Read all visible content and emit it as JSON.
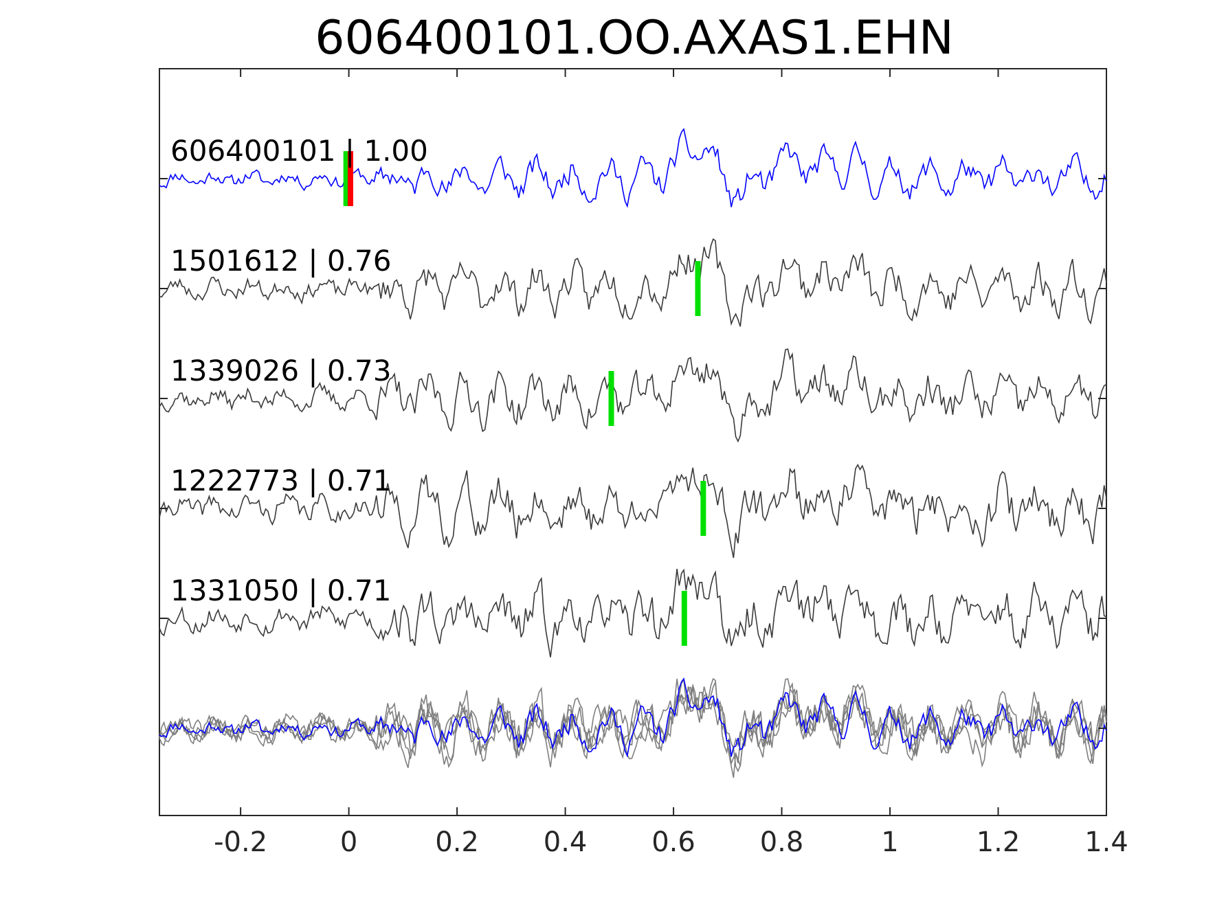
{
  "chart_data": {
    "type": "line",
    "title": "606400101.OO.AXAS1.EHN",
    "xlabel": "",
    "ylabel": "",
    "xlim": [
      -0.35,
      1.4
    ],
    "x_ticks": [
      -0.2,
      0,
      0.2,
      0.4,
      0.6,
      0.8,
      1,
      1.2,
      1.4
    ],
    "x_tick_labels": [
      "-0.2",
      "0",
      "0.2",
      "0.4",
      "0.6",
      "0.8",
      "1",
      "1.2",
      "1.4"
    ],
    "grid": false,
    "legend": "none",
    "colors": {
      "template": "#0000ff",
      "match": "#3a3a3a",
      "overlay": "#7f7f7f",
      "pick_catalog": "#00e000",
      "pick_detected": "#ff0000",
      "axes": "#262626"
    },
    "series": [
      {
        "label": "606400101 | 1.00",
        "role": "template",
        "seed": 11,
        "picks": [
          {
            "time": -0.005,
            "color": "green"
          },
          {
            "time": 0.003,
            "color": "red"
          }
        ]
      },
      {
        "label": "1501612 | 0.76",
        "role": "match",
        "seed": 23,
        "picks": [
          {
            "time": 0.645,
            "color": "green"
          }
        ]
      },
      {
        "label": "1339026 | 0.73",
        "role": "match",
        "seed": 37,
        "picks": [
          {
            "time": 0.485,
            "color": "green"
          }
        ]
      },
      {
        "label": "1222773 | 0.71",
        "role": "match",
        "seed": 41,
        "picks": [
          {
            "time": 0.655,
            "color": "green"
          }
        ]
      },
      {
        "label": "1331050 | 0.71",
        "role": "match",
        "seed": 53,
        "picks": [
          {
            "time": 0.62,
            "color": "green"
          }
        ]
      }
    ],
    "stack": {
      "role": "overlay",
      "note": "all five traces superimposed"
    }
  }
}
